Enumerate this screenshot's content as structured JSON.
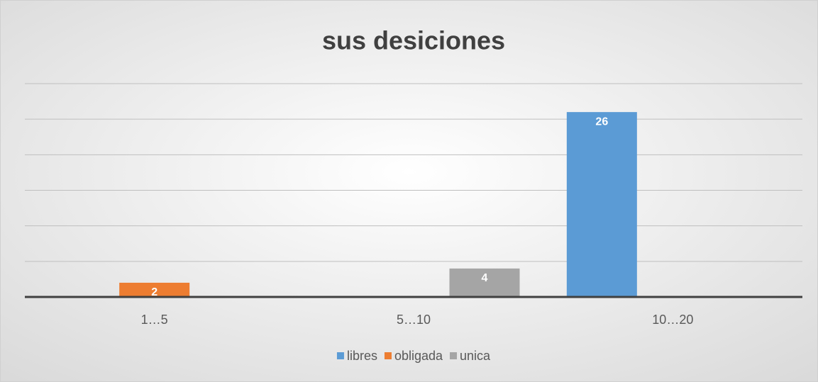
{
  "chart_data": {
    "type": "bar",
    "title": "sus desiciones",
    "categories": [
      "1…5",
      "5…10",
      "10…20"
    ],
    "series": [
      {
        "name": "libres",
        "color": "#5b9bd5",
        "values": [
          null,
          null,
          26
        ]
      },
      {
        "name": "obligada",
        "color": "#ed7d31",
        "values": [
          2,
          null,
          null
        ]
      },
      {
        "name": "unica",
        "color": "#a5a5a5",
        "values": [
          null,
          4,
          null
        ]
      }
    ],
    "ylim": [
      0,
      30
    ],
    "yticks": [
      0,
      5,
      10,
      15,
      20,
      25,
      30
    ],
    "grid": true,
    "legend": "bottom"
  }
}
